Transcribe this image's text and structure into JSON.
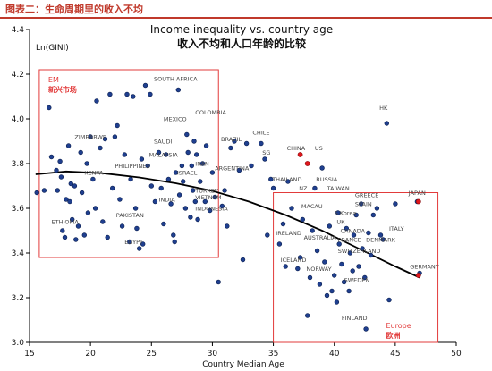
{
  "header": {
    "title": "图表二：生命周期里的收入不均"
  },
  "chart_data": {
    "type": "scatter",
    "title": "Income inequality vs. country age",
    "subtitle": "收入不均和人口年龄的比较",
    "xlabel": "Country Median Age",
    "ylabel": "Ln(GINI)",
    "xlim": [
      15,
      50
    ],
    "ylim": [
      3.0,
      4.4
    ],
    "x_ticks": [
      "15",
      "20",
      "25",
      "30",
      "35",
      "40",
      "45",
      "50"
    ],
    "y_ticks": [
      "3.0",
      "3.2",
      "3.4",
      "3.6",
      "3.8",
      "4.0",
      "4.2",
      "4.4"
    ],
    "grid": false,
    "colors": {
      "point": "#1f3f8f",
      "highlight": "#e0161b",
      "box": "#e23b3b",
      "curve": "#000000",
      "label": "#444444"
    },
    "boxes": [
      {
        "name": "em-box",
        "label": "EM",
        "label_cn": "新兴市场",
        "x": [
          15.8,
          30.5
        ],
        "y": [
          3.38,
          4.22
        ]
      },
      {
        "name": "europe-box",
        "label": "Europe",
        "label_cn": "欧洲",
        "x": [
          35.0,
          48.5
        ],
        "y": [
          3.0,
          3.67
        ]
      }
    ],
    "trend": {
      "label": "fitted curve",
      "x": [
        15.5,
        18,
        21,
        24,
        27,
        30,
        33,
        36,
        39,
        42,
        45,
        47
      ],
      "y": [
        3.752,
        3.765,
        3.757,
        3.738,
        3.712,
        3.678,
        3.63,
        3.57,
        3.5,
        3.42,
        3.34,
        3.29
      ]
    },
    "points": [
      [
        15.6,
        3.67
      ],
      [
        16.2,
        3.68
      ],
      [
        16.6,
        4.05
      ],
      [
        16.8,
        3.83
      ],
      [
        17.2,
        3.77
      ],
      [
        17.3,
        3.68
      ],
      [
        17.5,
        3.81
      ],
      [
        17.6,
        3.74
      ],
      [
        17.7,
        3.5
      ],
      [
        17.9,
        3.47
      ],
      [
        18.0,
        3.64
      ],
      [
        18.2,
        3.88
      ],
      [
        18.3,
        3.63
      ],
      [
        18.4,
        3.71
      ],
      [
        18.5,
        3.55
      ],
      [
        18.7,
        3.7
      ],
      [
        18.8,
        3.46
      ],
      [
        19.0,
        3.52
      ],
      [
        19.2,
        3.85
      ],
      [
        19.3,
        3.67
      ],
      [
        19.5,
        3.48
      ],
      [
        19.7,
        3.8
      ],
      [
        19.8,
        3.58
      ],
      [
        20.0,
        3.92
      ],
      [
        20.2,
        3.73
      ],
      [
        20.4,
        3.6
      ],
      [
        20.5,
        4.08
      ],
      [
        20.8,
        3.87
      ],
      [
        21.0,
        3.54
      ],
      [
        21.2,
        3.91
      ],
      [
        21.4,
        3.47
      ],
      [
        21.6,
        4.11
      ],
      [
        21.8,
        3.69
      ],
      [
        22.0,
        3.92
      ],
      [
        22.2,
        3.97
      ],
      [
        22.4,
        3.64
      ],
      [
        22.6,
        3.52
      ],
      [
        22.8,
        3.84
      ],
      [
        23.0,
        4.11
      ],
      [
        23.2,
        3.45
      ],
      [
        23.3,
        3.73
      ],
      [
        23.5,
        4.1
      ],
      [
        23.7,
        3.6
      ],
      [
        23.8,
        3.51
      ],
      [
        24.0,
        3.42
      ],
      [
        24.2,
        3.82
      ],
      [
        24.3,
        3.44
      ],
      [
        24.5,
        4.15
      ],
      [
        24.7,
        3.79
      ],
      [
        24.9,
        4.11
      ],
      [
        25.0,
        3.7
      ],
      [
        25.3,
        3.63
      ],
      [
        25.6,
        3.85
      ],
      [
        25.8,
        3.69
      ],
      [
        26.0,
        3.53
      ],
      [
        26.2,
        3.84
      ],
      [
        26.4,
        3.73
      ],
      [
        26.6,
        3.62
      ],
      [
        26.8,
        3.48
      ],
      [
        26.9,
        3.45
      ],
      [
        27.0,
        3.76
      ],
      [
        27.2,
        4.13
      ],
      [
        27.3,
        3.66
      ],
      [
        27.5,
        3.79
      ],
      [
        27.6,
        3.72
      ],
      [
        27.8,
        3.6
      ],
      [
        27.9,
        3.93
      ],
      [
        28.0,
        3.85
      ],
      [
        28.2,
        3.56
      ],
      [
        28.3,
        3.79
      ],
      [
        28.4,
        3.68
      ],
      [
        28.5,
        3.9
      ],
      [
        28.6,
        3.63
      ],
      [
        28.7,
        3.84
      ],
      [
        28.8,
        3.55
      ],
      [
        29.0,
        3.72
      ],
      [
        29.2,
        3.8
      ],
      [
        29.4,
        3.63
      ],
      [
        29.5,
        3.88
      ],
      [
        29.8,
        3.59
      ],
      [
        30.0,
        3.76
      ],
      [
        30.2,
        3.65
      ],
      [
        30.5,
        3.27
      ],
      [
        30.8,
        3.61
      ],
      [
        31.0,
        3.68
      ],
      [
        31.2,
        3.52
      ],
      [
        31.5,
        3.87
      ],
      [
        31.8,
        3.9
      ],
      [
        32.2,
        3.77
      ],
      [
        32.5,
        3.37
      ],
      [
        32.8,
        3.89
      ],
      [
        33.2,
        3.79
      ],
      [
        34.0,
        3.89
      ],
      [
        34.3,
        3.82
      ],
      [
        34.5,
        3.48
      ],
      [
        34.8,
        3.73
      ],
      [
        35.0,
        3.69
      ],
      [
        35.5,
        3.44
      ],
      [
        35.8,
        3.53
      ],
      [
        36.0,
        3.34
      ],
      [
        36.2,
        3.72
      ],
      [
        36.5,
        3.6
      ],
      [
        37.0,
        3.33
      ],
      [
        37.2,
        3.38
      ],
      [
        37.4,
        3.55
      ],
      [
        37.8,
        3.12
      ],
      [
        38.0,
        3.29
      ],
      [
        38.2,
        3.5
      ],
      [
        38.4,
        3.69
      ],
      [
        38.6,
        3.41
      ],
      [
        38.8,
        3.26
      ],
      [
        39.0,
        3.78
      ],
      [
        39.2,
        3.36
      ],
      [
        39.4,
        3.21
      ],
      [
        39.6,
        3.52
      ],
      [
        39.8,
        3.23
      ],
      [
        40.0,
        3.3
      ],
      [
        40.2,
        3.18
      ],
      [
        40.3,
        3.58
      ],
      [
        40.4,
        3.44
      ],
      [
        40.6,
        3.35
      ],
      [
        40.8,
        3.27
      ],
      [
        41.0,
        3.51
      ],
      [
        41.2,
        3.23
      ],
      [
        41.3,
        3.4
      ],
      [
        41.5,
        3.32
      ],
      [
        41.6,
        3.48
      ],
      [
        41.8,
        3.57
      ],
      [
        42.0,
        3.34
      ],
      [
        42.2,
        3.62
      ],
      [
        42.3,
        3.42
      ],
      [
        42.5,
        3.29
      ],
      [
        42.6,
        3.06
      ],
      [
        42.8,
        3.49
      ],
      [
        43.0,
        3.39
      ],
      [
        43.2,
        3.57
      ],
      [
        43.5,
        3.6
      ],
      [
        43.8,
        3.48
      ],
      [
        44.0,
        3.46
      ],
      [
        44.3,
        3.98
      ],
      [
        44.5,
        3.19
      ],
      [
        45.0,
        3.62
      ],
      [
        46.8,
        3.63
      ],
      [
        47.0,
        3.31
      ]
    ],
    "highlight_points": [
      [
        37.2,
        3.84
      ],
      [
        37.8,
        3.8
      ],
      [
        46.9,
        3.63
      ],
      [
        46.9,
        3.3
      ]
    ],
    "annotations": [
      {
        "text": "SOUTH AFRICA",
        "x": 25.2,
        "y": 4.17
      },
      {
        "text": "COLOMBIA",
        "x": 28.6,
        "y": 4.02
      },
      {
        "text": "MEXICO",
        "x": 26.0,
        "y": 3.99
      },
      {
        "text": "ZIMBABWE",
        "x": 18.7,
        "y": 3.91
      },
      {
        "text": "SAUDI",
        "x": 25.2,
        "y": 3.89
      },
      {
        "text": "BRAZIL",
        "x": 30.7,
        "y": 3.9
      },
      {
        "text": "CHILE",
        "x": 33.3,
        "y": 3.93
      },
      {
        "text": "MALAYSIA",
        "x": 24.8,
        "y": 3.83
      },
      {
        "text": "IRAN",
        "x": 28.6,
        "y": 3.79
      },
      {
        "text": "PHILIPPINES",
        "x": 22.0,
        "y": 3.78
      },
      {
        "text": "KENYA",
        "x": 19.5,
        "y": 3.75
      },
      {
        "text": "ISRAEL",
        "x": 27.1,
        "y": 3.75
      },
      {
        "text": "ARGENTINA",
        "x": 30.2,
        "y": 3.77
      },
      {
        "text": "SG",
        "x": 34.1,
        "y": 3.84
      },
      {
        "text": "CHINA",
        "x": 36.1,
        "y": 3.86
      },
      {
        "text": "US",
        "x": 38.4,
        "y": 3.86
      },
      {
        "text": "THAILAND",
        "x": 34.9,
        "y": 3.72
      },
      {
        "text": "RUSSIA",
        "x": 38.5,
        "y": 3.72
      },
      {
        "text": "NZ",
        "x": 37.1,
        "y": 3.68
      },
      {
        "text": "TAIWAN",
        "x": 39.4,
        "y": 3.68
      },
      {
        "text": "TURKEY",
        "x": 28.6,
        "y": 3.67
      },
      {
        "text": "INDIA",
        "x": 25.6,
        "y": 3.63
      },
      {
        "text": "VIETNAM",
        "x": 28.6,
        "y": 3.64
      },
      {
        "text": "INDONESIA",
        "x": 28.6,
        "y": 3.59
      },
      {
        "text": "PAKISTAN",
        "x": 22.1,
        "y": 3.56
      },
      {
        "text": "ETHIOPIA",
        "x": 16.8,
        "y": 3.53
      },
      {
        "text": "EGYPT",
        "x": 22.8,
        "y": 3.44
      },
      {
        "text": "HK",
        "x": 43.7,
        "y": 4.04
      },
      {
        "text": "GREECE",
        "x": 41.7,
        "y": 3.65
      },
      {
        "text": "JAPAN",
        "x": 46.1,
        "y": 3.66
      },
      {
        "text": "MACAU",
        "x": 37.3,
        "y": 3.6
      },
      {
        "text": "SPAIN",
        "x": 41.7,
        "y": 3.61
      },
      {
        "text": "S Korea",
        "x": 40.0,
        "y": 3.57
      },
      {
        "text": "UK",
        "x": 40.2,
        "y": 3.53
      },
      {
        "text": "ITALY",
        "x": 44.5,
        "y": 3.5
      },
      {
        "text": "CANADA",
        "x": 40.5,
        "y": 3.49
      },
      {
        "text": "IRELAND",
        "x": 35.2,
        "y": 3.48
      },
      {
        "text": "AUSTRALIA",
        "x": 37.5,
        "y": 3.46
      },
      {
        "text": "FRANCE",
        "x": 40.3,
        "y": 3.45
      },
      {
        "text": "DENMARK",
        "x": 42.6,
        "y": 3.45
      },
      {
        "text": "SWITZERLAND",
        "x": 40.3,
        "y": 3.4
      },
      {
        "text": "ICELAND",
        "x": 35.6,
        "y": 3.36
      },
      {
        "text": "NORWAY",
        "x": 37.7,
        "y": 3.32
      },
      {
        "text": "GERMANY",
        "x": 46.2,
        "y": 3.33
      },
      {
        "text": "SWEDEN",
        "x": 40.8,
        "y": 3.27
      },
      {
        "text": "FINLAND",
        "x": 40.6,
        "y": 3.1
      }
    ]
  }
}
